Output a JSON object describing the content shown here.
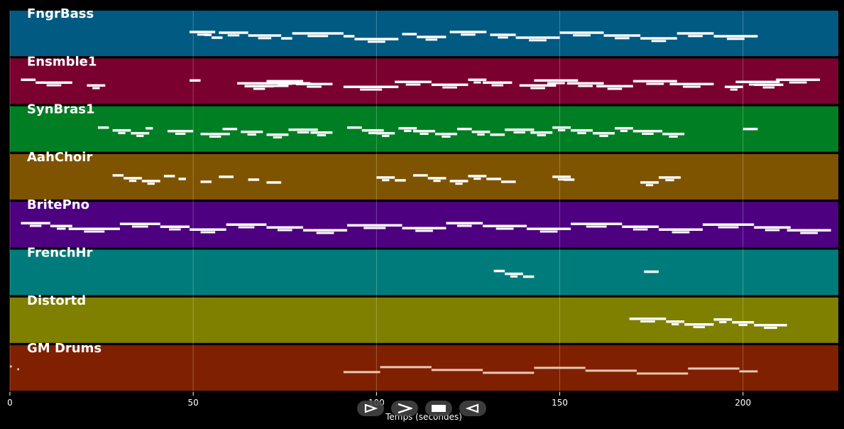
{
  "chart_data": {
    "type": "piano-roll",
    "xlabel": "Temps (secondes)",
    "xlim": [
      0,
      226
    ],
    "xticks": [
      0,
      50,
      100,
      150,
      200
    ],
    "grid": true,
    "tracks": [
      {
        "name": "FngrBass",
        "color": "#005A82",
        "notes": [
          [
            49,
            7
          ],
          [
            53,
            2
          ],
          [
            55,
            3
          ],
          [
            57,
            8
          ],
          [
            65,
            9
          ],
          [
            74,
            3
          ],
          [
            77,
            14
          ],
          [
            91,
            3
          ],
          [
            94,
            12
          ],
          [
            107,
            4
          ],
          [
            111,
            8
          ],
          [
            120,
            10
          ],
          [
            131,
            7
          ],
          [
            138,
            12
          ],
          [
            150,
            12
          ],
          [
            162,
            10
          ],
          [
            172,
            10
          ],
          [
            182,
            10
          ],
          [
            192,
            12
          ]
        ]
      },
      {
        "name": "Ensmble1",
        "color": "#7A0030",
        "notes": [
          [
            3,
            4
          ],
          [
            7,
            10
          ],
          [
            21,
            5
          ],
          [
            49,
            3
          ],
          [
            62,
            20
          ],
          [
            64,
            8
          ],
          [
            70,
            10
          ],
          [
            78,
            10
          ],
          [
            91,
            15
          ],
          [
            105,
            10
          ],
          [
            115,
            10
          ],
          [
            125,
            5
          ],
          [
            129,
            8
          ],
          [
            139,
            10
          ],
          [
            143,
            12
          ],
          [
            152,
            10
          ],
          [
            160,
            10
          ],
          [
            170,
            12
          ],
          [
            180,
            12
          ],
          [
            195,
            5
          ],
          [
            198,
            12
          ],
          [
            203,
            8
          ],
          [
            209,
            12
          ]
        ]
      },
      {
        "name": "SynBras1",
        "color": "#007E23",
        "notes": [
          [
            24,
            3
          ],
          [
            28,
            5
          ],
          [
            33,
            5
          ],
          [
            37,
            2
          ],
          [
            43,
            7
          ],
          [
            52,
            8
          ],
          [
            58,
            4
          ],
          [
            63,
            6
          ],
          [
            70,
            6
          ],
          [
            76,
            8
          ],
          [
            82,
            6
          ],
          [
            92,
            4
          ],
          [
            96,
            6
          ],
          [
            100,
            5
          ],
          [
            106,
            5
          ],
          [
            110,
            6
          ],
          [
            116,
            6
          ],
          [
            122,
            4
          ],
          [
            126,
            5
          ],
          [
            131,
            4
          ],
          [
            135,
            8
          ],
          [
            142,
            6
          ],
          [
            148,
            5
          ],
          [
            153,
            6
          ],
          [
            159,
            6
          ],
          [
            165,
            5
          ],
          [
            170,
            8
          ],
          [
            178,
            6
          ],
          [
            200,
            4
          ]
        ]
      },
      {
        "name": "AahChoir",
        "color": "#7F5400",
        "notes": [
          [
            28,
            3
          ],
          [
            31,
            5
          ],
          [
            36,
            5
          ],
          [
            42,
            3
          ],
          [
            46,
            2
          ],
          [
            52,
            3
          ],
          [
            57,
            4
          ],
          [
            65,
            3
          ],
          [
            70,
            4
          ],
          [
            100,
            5
          ],
          [
            105,
            3
          ],
          [
            110,
            4
          ],
          [
            114,
            5
          ],
          [
            120,
            5
          ],
          [
            125,
            5
          ],
          [
            130,
            4
          ],
          [
            134,
            4
          ],
          [
            148,
            5
          ],
          [
            151,
            3
          ],
          [
            172,
            5
          ],
          [
            177,
            6
          ]
        ]
      },
      {
        "name": "BritePno",
        "color": "#4D007F",
        "notes": [
          [
            3,
            8
          ],
          [
            11,
            6
          ],
          [
            16,
            14
          ],
          [
            30,
            11
          ],
          [
            41,
            8
          ],
          [
            49,
            10
          ],
          [
            59,
            11
          ],
          [
            70,
            10
          ],
          [
            80,
            12
          ],
          [
            92,
            15
          ],
          [
            107,
            12
          ],
          [
            119,
            10
          ],
          [
            129,
            12
          ],
          [
            141,
            12
          ],
          [
            153,
            14
          ],
          [
            167,
            10
          ],
          [
            177,
            12
          ],
          [
            189,
            14
          ],
          [
            203,
            10
          ],
          [
            212,
            12
          ]
        ]
      },
      {
        "name": "FrenchHr",
        "color": "#007B7B",
        "notes": [
          [
            132,
            3
          ],
          [
            135,
            5
          ],
          [
            140,
            3
          ],
          [
            173,
            4
          ]
        ]
      },
      {
        "name": "Distortd",
        "color": "#7F7F00",
        "notes": [
          [
            169,
            10
          ],
          [
            179,
            5
          ],
          [
            184,
            8
          ],
          [
            192,
            5
          ],
          [
            197,
            6
          ],
          [
            203,
            9
          ]
        ]
      },
      {
        "name": "GM Drums",
        "color": "#7F2000",
        "notes": [
          [
            0,
            0.5
          ],
          [
            2,
            0.5
          ],
          [
            91,
            10
          ],
          [
            101,
            14
          ],
          [
            115,
            14
          ],
          [
            129,
            14
          ],
          [
            143,
            14
          ],
          [
            157,
            14
          ],
          [
            171,
            14
          ],
          [
            185,
            14
          ],
          [
            199,
            5
          ]
        ]
      }
    ]
  },
  "controls": [
    {
      "name": "prev-button",
      "icon": "prev-icon"
    },
    {
      "name": "next-button",
      "icon": "next-icon"
    },
    {
      "name": "stop-button",
      "icon": "stop-icon"
    },
    {
      "name": "back-button",
      "icon": "back-icon"
    }
  ]
}
